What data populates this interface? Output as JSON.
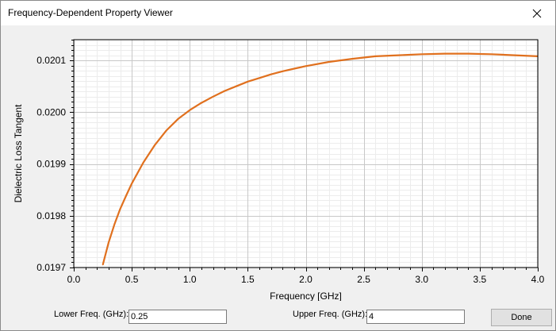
{
  "window": {
    "title": "Frequency-Dependent Property Viewer"
  },
  "controls": {
    "lower_label": "Lower Freq. (GHz):",
    "lower_value": "0.25",
    "upper_label": "Upper Freq. (GHz):",
    "upper_value": "4",
    "done_label": "Done"
  },
  "chart_data": {
    "type": "line",
    "xlabel": "Frequency [GHz]",
    "ylabel": "Dielectric Loss Tangent",
    "xlim": [
      0.0,
      4.0
    ],
    "ylim": [
      0.0197,
      0.02014
    ],
    "x_ticks": [
      "0.0",
      "0.5",
      "1.0",
      "1.5",
      "2.0",
      "2.5",
      "3.0",
      "3.5",
      "4.0"
    ],
    "y_ticks": [
      "0.0197",
      "0.0198",
      "0.0199",
      "0.0200",
      "0.0201"
    ],
    "grid": true,
    "line_color": "#e0701e",
    "series": [
      {
        "x": [
          0.25,
          0.3,
          0.35,
          0.4,
          0.45,
          0.5,
          0.6,
          0.7,
          0.8,
          0.9,
          1.0,
          1.1,
          1.2,
          1.3,
          1.4,
          1.5,
          1.6,
          1.7,
          1.8,
          1.9,
          2.0,
          2.2,
          2.4,
          2.6,
          2.8,
          3.0,
          3.2,
          3.4,
          3.6,
          3.8,
          4.0
        ],
        "y": [
          0.019705,
          0.019748,
          0.019783,
          0.019813,
          0.019838,
          0.019862,
          0.019903,
          0.019937,
          0.019965,
          0.019987,
          0.020004,
          0.020018,
          0.02003,
          0.020041,
          0.02005,
          0.020059,
          0.020066,
          0.020073,
          0.020079,
          0.020084,
          0.020089,
          0.020097,
          0.020103,
          0.020108,
          0.02011,
          0.020112,
          0.020113,
          0.020113,
          0.020112,
          0.02011,
          0.020108
        ]
      }
    ]
  }
}
